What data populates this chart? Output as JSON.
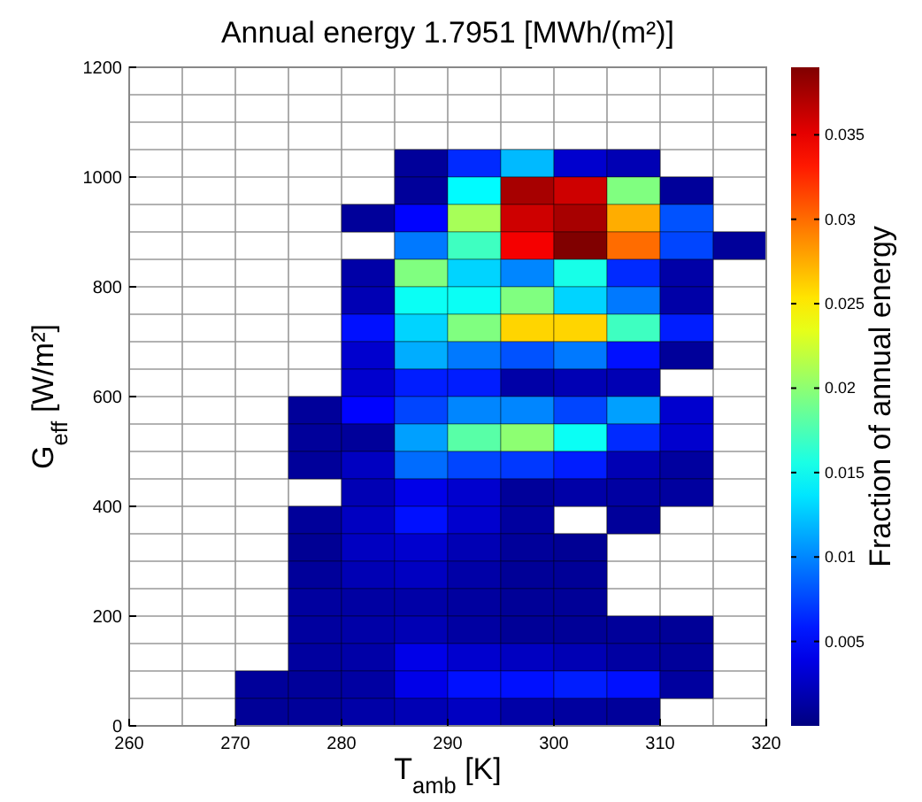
{
  "chart_data": {
    "type": "heatmap",
    "title": "Annual energy 1.7951 [MWh/(m²)]",
    "xlabel": "T$_{amb}$ [K]",
    "ylabel": "G$_{eff}$ [W/m²]",
    "clabel": "Fraction of annual energy",
    "xlim": [
      260,
      320
    ],
    "xticks": [
      260,
      270,
      280,
      290,
      300,
      310,
      320
    ],
    "ylim": [
      0,
      1200
    ],
    "yticks": [
      0,
      200,
      400,
      600,
      800,
      1000,
      1200
    ],
    "clim": [
      0,
      0.039
    ],
    "cticks": [
      0.005,
      0.01,
      0.015,
      0.02,
      0.025,
      0.03,
      0.035
    ],
    "grid": true,
    "x": [
      262.5,
      267.5,
      272.5,
      277.5,
      282.5,
      287.5,
      292.5,
      297.5,
      302.5,
      307.5,
      312.5,
      317.5
    ],
    "y": [
      1025,
      975,
      925,
      875,
      825,
      775,
      725,
      675,
      625,
      575,
      525,
      475,
      425,
      375,
      325,
      275,
      225,
      175,
      125,
      75,
      25
    ],
    "cells": [
      [
        null,
        null,
        null,
        null,
        null,
        0.001,
        0.0065,
        0.012,
        0.003,
        0.002,
        null,
        null
      ],
      [
        null,
        null,
        null,
        null,
        null,
        0.001,
        0.0145,
        0.0375,
        0.036,
        0.0195,
        0.001,
        null
      ],
      [
        null,
        null,
        null,
        null,
        0.001,
        0.005,
        0.021,
        0.036,
        0.0375,
        0.0275,
        0.008,
        null
      ],
      [
        null,
        null,
        null,
        null,
        null,
        0.0095,
        0.017,
        0.0345,
        0.039,
        0.03,
        0.0075,
        0.001
      ],
      [
        null,
        null,
        null,
        null,
        0.0015,
        0.0195,
        0.013,
        0.01,
        0.0155,
        0.0065,
        0.0015,
        null
      ],
      [
        null,
        null,
        null,
        null,
        0.002,
        0.015,
        0.015,
        0.0195,
        0.013,
        0.0095,
        0.0015,
        null
      ],
      [
        null,
        null,
        null,
        null,
        0.0055,
        0.013,
        0.0195,
        0.026,
        0.026,
        0.017,
        0.006,
        null
      ],
      [
        null,
        null,
        null,
        null,
        0.003,
        0.0115,
        0.0095,
        0.008,
        0.0095,
        0.0055,
        0.001,
        null
      ],
      [
        null,
        null,
        null,
        null,
        0.003,
        0.006,
        0.006,
        0.0015,
        0.002,
        0.002,
        null,
        null
      ],
      [
        null,
        null,
        null,
        0.001,
        0.005,
        0.0075,
        0.01,
        0.01,
        0.0075,
        0.011,
        0.003,
        null
      ],
      [
        null,
        null,
        null,
        0.001,
        0.001,
        0.011,
        0.018,
        0.02,
        0.015,
        0.0065,
        0.003,
        null
      ],
      [
        null,
        null,
        null,
        0.001,
        0.0025,
        0.009,
        0.0075,
        0.007,
        0.006,
        0.002,
        0.0012,
        null
      ],
      [
        null,
        null,
        null,
        null,
        0.002,
        0.004,
        0.003,
        0.001,
        0.0015,
        0.0013,
        0.0012,
        null
      ],
      [
        null,
        null,
        null,
        0.001,
        0.0025,
        0.0055,
        0.003,
        0.0012,
        null,
        0.001,
        null,
        null
      ],
      [
        null,
        null,
        null,
        0.0008,
        0.0025,
        0.003,
        0.002,
        0.001,
        0.0008,
        null,
        null,
        null
      ],
      [
        null,
        null,
        null,
        0.001,
        0.002,
        0.0025,
        0.0015,
        0.0009,
        0.0009,
        null,
        null,
        null
      ],
      [
        null,
        null,
        null,
        0.0012,
        0.0013,
        0.0015,
        0.0012,
        0.0009,
        0.0009,
        null,
        null,
        null
      ],
      [
        null,
        null,
        null,
        0.0012,
        0.0015,
        0.002,
        0.0013,
        0.0009,
        0.0009,
        0.001,
        0.0009,
        null
      ],
      [
        null,
        null,
        null,
        0.0012,
        0.0015,
        0.004,
        0.003,
        0.0025,
        0.002,
        0.0013,
        0.001,
        null
      ],
      [
        null,
        null,
        0.001,
        0.001,
        0.0013,
        0.004,
        0.0055,
        0.0055,
        0.006,
        0.0055,
        0.0012,
        null
      ],
      [
        null,
        null,
        0.0009,
        0.001,
        0.0015,
        0.002,
        0.0025,
        0.0015,
        0.0012,
        0.001,
        null,
        null
      ]
    ]
  }
}
